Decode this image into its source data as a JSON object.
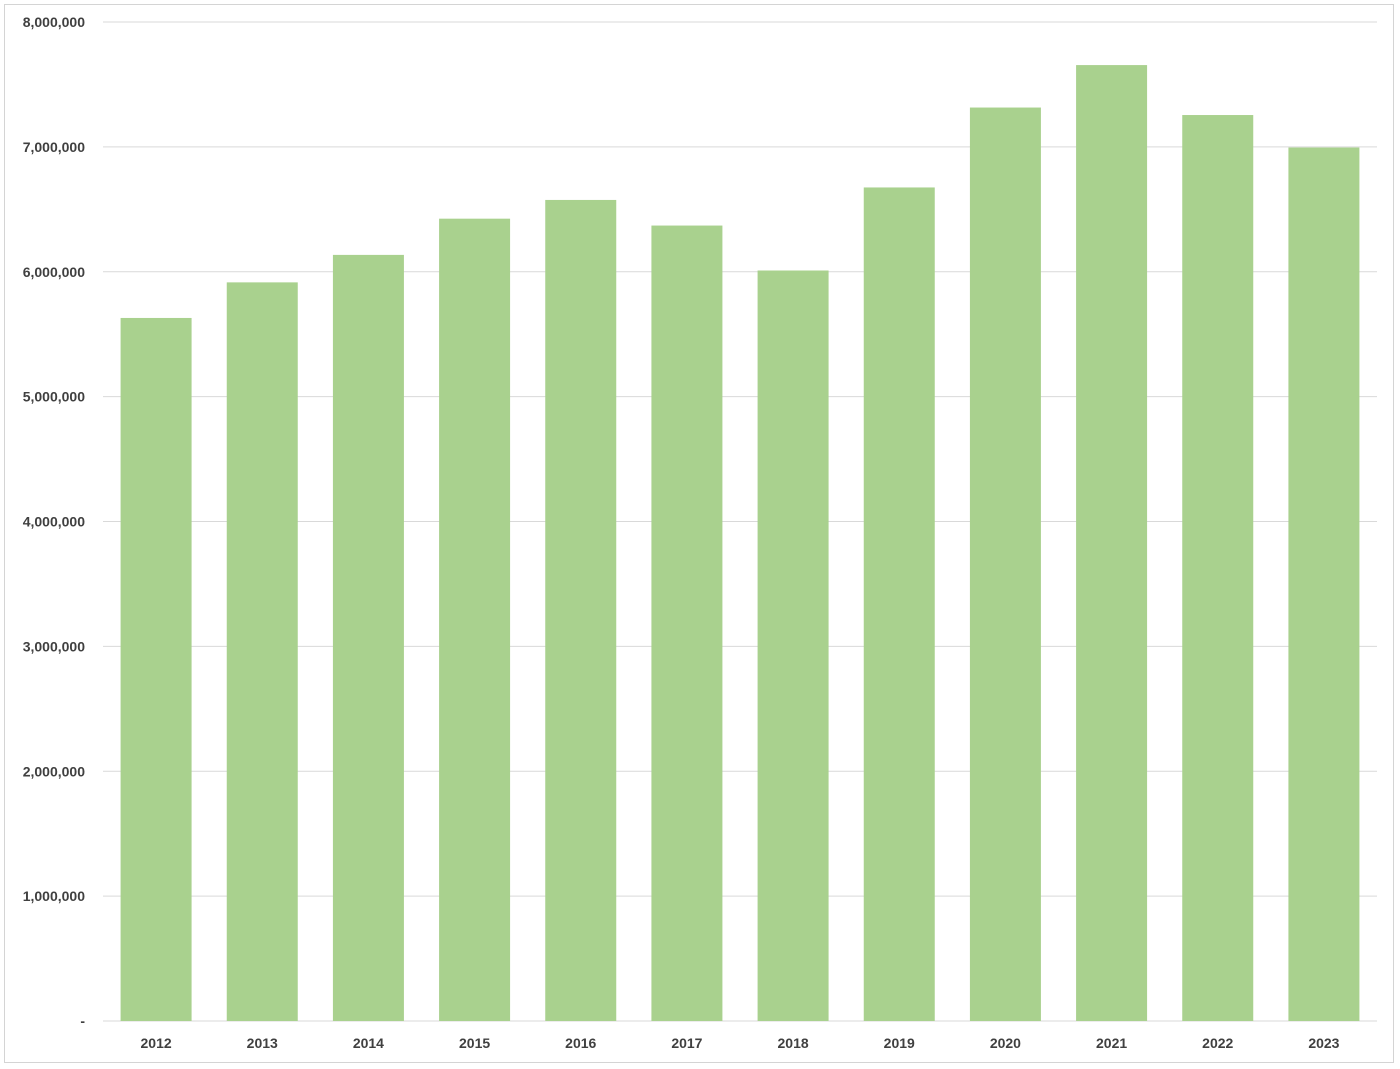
{
  "chart_data": {
    "type": "bar",
    "categories": [
      "2012",
      "2013",
      "2014",
      "2015",
      "2016",
      "2017",
      "2018",
      "2019",
      "2020",
      "2021",
      "2022",
      "2023"
    ],
    "values": [
      5630000,
      5915000,
      6135000,
      6425000,
      6575000,
      6370000,
      6010000,
      6675000,
      7315000,
      7655000,
      7255000,
      6995000
    ],
    "ylim": [
      0,
      8000000
    ],
    "yticks": [
      0,
      1000000,
      2000000,
      3000000,
      4000000,
      5000000,
      6000000,
      7000000,
      8000000
    ],
    "ytick_labels": [
      "-",
      "1,000,000",
      "2,000,000",
      "3,000,000",
      "4,000,000",
      "5,000,000",
      "6,000,000",
      "7,000,000",
      "8,000,000"
    ],
    "title": "",
    "xlabel": "",
    "ylabel": "",
    "grid": true,
    "legend": "none",
    "bar_color": "#a9d18e",
    "grid_color": "#d9d9d9"
  }
}
